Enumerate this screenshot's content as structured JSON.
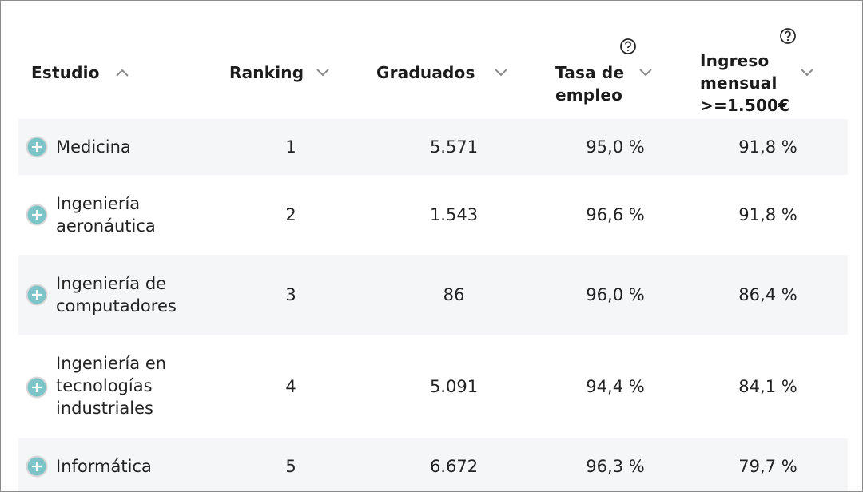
{
  "header": {
    "col_study": "Estudio",
    "col_ranking": "Ranking",
    "col_graduates": "Graduados",
    "col_employment_line1": "Tasa de",
    "col_employment_line2": "empleo",
    "col_income_line1": "Ingreso",
    "col_income_line2": "mensual",
    "col_income_line3": ">=1.500€",
    "sort_study": "ascending",
    "icons": {
      "sort_up": "chevron-up-icon",
      "sort_down": "chevron-down-icon",
      "help": "question-circle-icon",
      "expand": "plus-circle-icon"
    }
  },
  "rows": [
    {
      "name_lines": [
        "Medicina"
      ],
      "ranking": "1",
      "graduates": "5.571",
      "employment": "95,0 %",
      "income": "91,8 %"
    },
    {
      "name_lines": [
        "Ingeniería",
        "aeronáutica"
      ],
      "ranking": "2",
      "graduates": "1.543",
      "employment": "96,6 %",
      "income": "91,8 %"
    },
    {
      "name_lines": [
        "Ingeniería de",
        "computadores"
      ],
      "ranking": "3",
      "graduates": "86",
      "employment": "96,0 %",
      "income": "86,4 %"
    },
    {
      "name_lines": [
        "Ingeniería en",
        "tecnologías",
        "industriales"
      ],
      "ranking": "4",
      "graduates": "5.091",
      "employment": "94,4 %",
      "income": "84,1 %"
    },
    {
      "name_lines": [
        "Informática"
      ],
      "ranking": "5",
      "graduates": "6.672",
      "employment": "96,3 %",
      "income": "79,7 %"
    }
  ],
  "colors": {
    "row_shade": "#f5f6f8",
    "expand_icon": "#7cc4c8",
    "text": "#232323"
  }
}
